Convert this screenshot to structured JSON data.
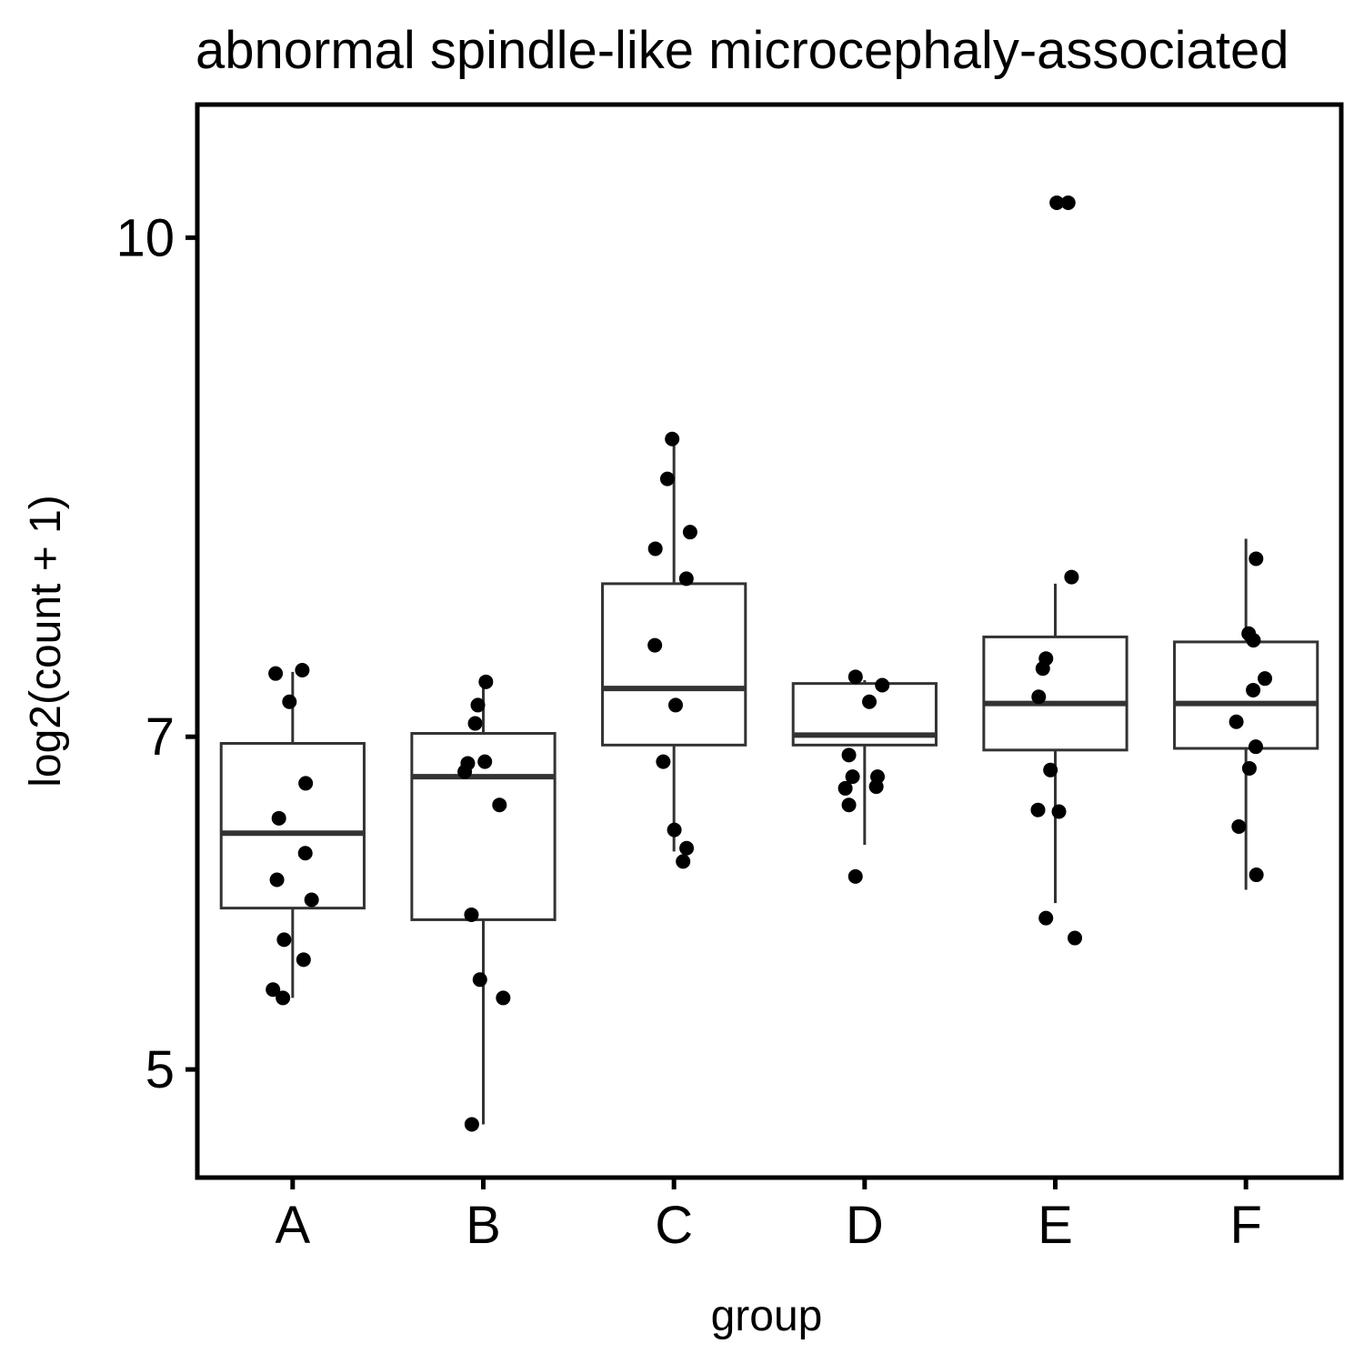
{
  "chart_data": {
    "type": "box",
    "title": "abnormal spindle-like microcephaly-associated",
    "xlabel": "group",
    "ylabel": "log2(count + 1)",
    "ylim": [
      4.35,
      10.8
    ],
    "yticks": [
      5,
      7,
      10
    ],
    "ytick_labels": [
      "5",
      "7",
      "10"
    ],
    "categories": [
      "A",
      "B",
      "C",
      "D",
      "E",
      "F"
    ],
    "grid": false,
    "legend": "none",
    "box_color": "#333333",
    "point_color": "#000000",
    "boxes": [
      {
        "group": "A",
        "whisker_low": 5.43,
        "q1": 5.97,
        "median": 6.42,
        "q3": 6.96,
        "whisker_high": 7.39
      },
      {
        "group": "B",
        "whisker_low": 4.67,
        "q1": 5.9,
        "median": 6.76,
        "q3": 7.02,
        "whisker_high": 7.33
      },
      {
        "group": "C",
        "whisker_low": 6.31,
        "q1": 6.95,
        "median": 7.29,
        "q3": 7.92,
        "whisker_high": 8.79
      },
      {
        "group": "D",
        "whisker_low": 6.35,
        "q1": 6.95,
        "median": 7.01,
        "q3": 7.32,
        "whisker_high": 7.34
      },
      {
        "group": "E",
        "whisker_low": 6.0,
        "q1": 6.92,
        "median": 7.2,
        "q3": 7.6,
        "whisker_high": 7.92
      },
      {
        "group": "F",
        "whisker_low": 6.08,
        "q1": 6.93,
        "median": 7.2,
        "q3": 7.57,
        "whisker_high": 8.19
      }
    ],
    "points": [
      {
        "group": "A",
        "values": [
          7.4,
          7.38,
          7.21,
          6.72,
          6.51,
          6.3,
          6.14,
          6.02,
          5.78,
          5.66,
          5.48,
          5.43
        ]
      },
      {
        "group": "B",
        "values": [
          7.33,
          7.19,
          7.08,
          6.85,
          6.84,
          6.79,
          6.59,
          5.93,
          5.54,
          5.43,
          4.67
        ]
      },
      {
        "group": "C",
        "values": [
          8.79,
          8.55,
          8.23,
          8.13,
          7.95,
          7.55,
          7.19,
          6.85,
          6.44,
          6.33,
          6.25
        ]
      },
      {
        "group": "D",
        "values": [
          7.36,
          7.31,
          7.21,
          6.89,
          6.76,
          6.76,
          6.7,
          6.69,
          6.59,
          6.16
        ]
      },
      {
        "group": "E",
        "values": [
          10.21,
          10.21,
          7.96,
          7.47,
          7.41,
          7.24,
          6.8,
          6.56,
          6.55,
          5.91,
          5.79
        ]
      },
      {
        "group": "F",
        "values": [
          8.07,
          7.62,
          7.58,
          7.35,
          7.28,
          7.09,
          6.94,
          6.81,
          6.46,
          6.17
        ]
      }
    ]
  }
}
